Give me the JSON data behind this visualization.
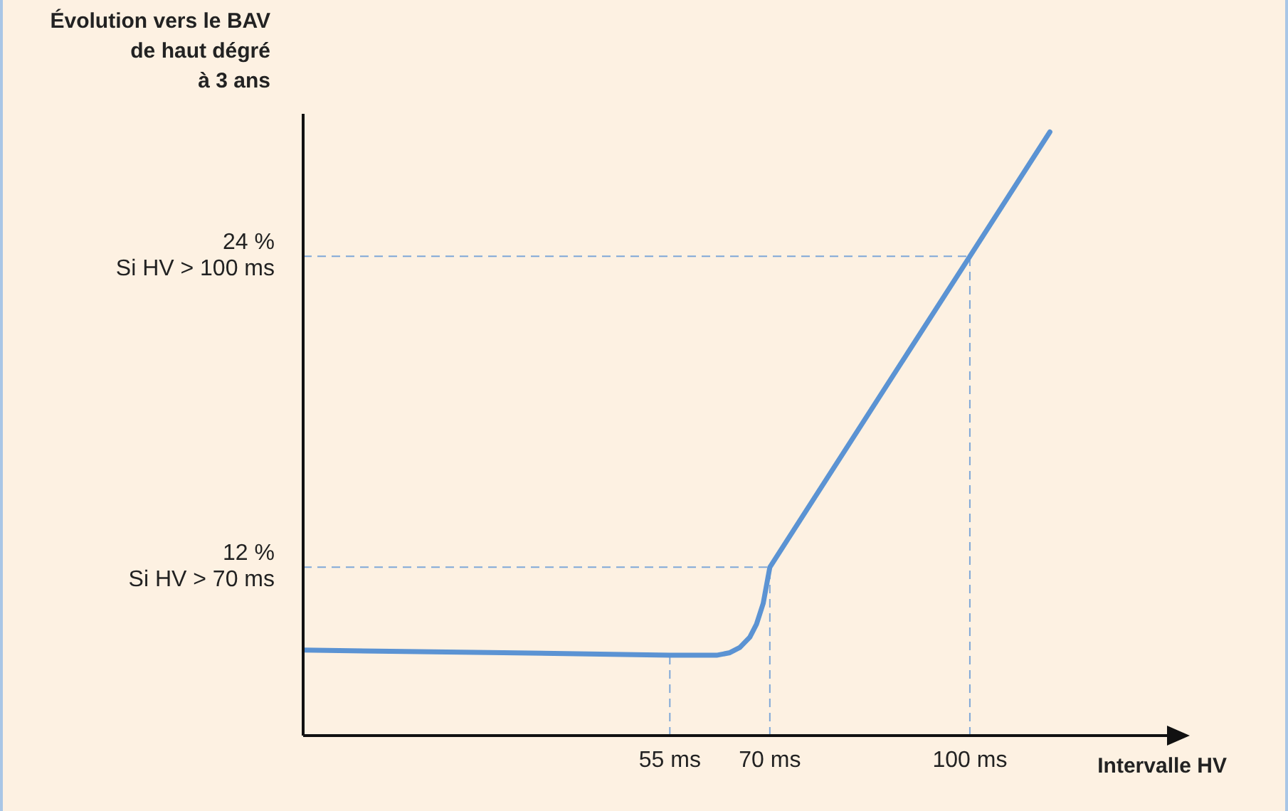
{
  "chart_data": {
    "type": "line",
    "ylabel": "Évolution vers le BAV\nde haut dégré\nà 3 ans",
    "xlabel": "Intervalle HV",
    "x": [
      0,
      30,
      55,
      62,
      64,
      65.5,
      67,
      68,
      69,
      70,
      100,
      112
    ],
    "series": [
      {
        "color": "#5b93d3",
        "values": [
          8.8,
          8.7,
          8.6,
          8.6,
          8.7,
          8.9,
          9.3,
          9.8,
          10.6,
          12,
          24,
          28.8
        ]
      }
    ],
    "xlim": [
      0,
      130
    ],
    "xticks": [
      {
        "value": 55,
        "label": "55 ms"
      },
      {
        "value": 70,
        "label": "70 ms"
      },
      {
        "value": 100,
        "label": "100 ms"
      }
    ],
    "ylim": [
      5.5,
      29.5
    ],
    "yticks": [
      {
        "value": 12,
        "label": "12 %"
      },
      {
        "value": 24,
        "label": "24 %"
      }
    ],
    "ref_lines": [
      {
        "axis": "y",
        "value": 12,
        "label": "Si HV > 70 ms",
        "color": "#7fa8d8",
        "line_style": "dashed"
      },
      {
        "axis": "y",
        "value": 24,
        "label": "Si HV > 100 ms",
        "color": "#7fa8d8",
        "line_style": "dashed"
      },
      {
        "axis": "x",
        "value": 55,
        "color": "#7fa8d8",
        "line_style": "dashed"
      },
      {
        "axis": "x",
        "value": 70,
        "color": "#7fa8d8",
        "line_style": "dashed"
      },
      {
        "axis": "x",
        "value": 100,
        "color": "#7fa8d8",
        "line_style": "dashed"
      }
    ],
    "grid": false,
    "legend": false,
    "marker": "none",
    "line_style": "solid"
  }
}
